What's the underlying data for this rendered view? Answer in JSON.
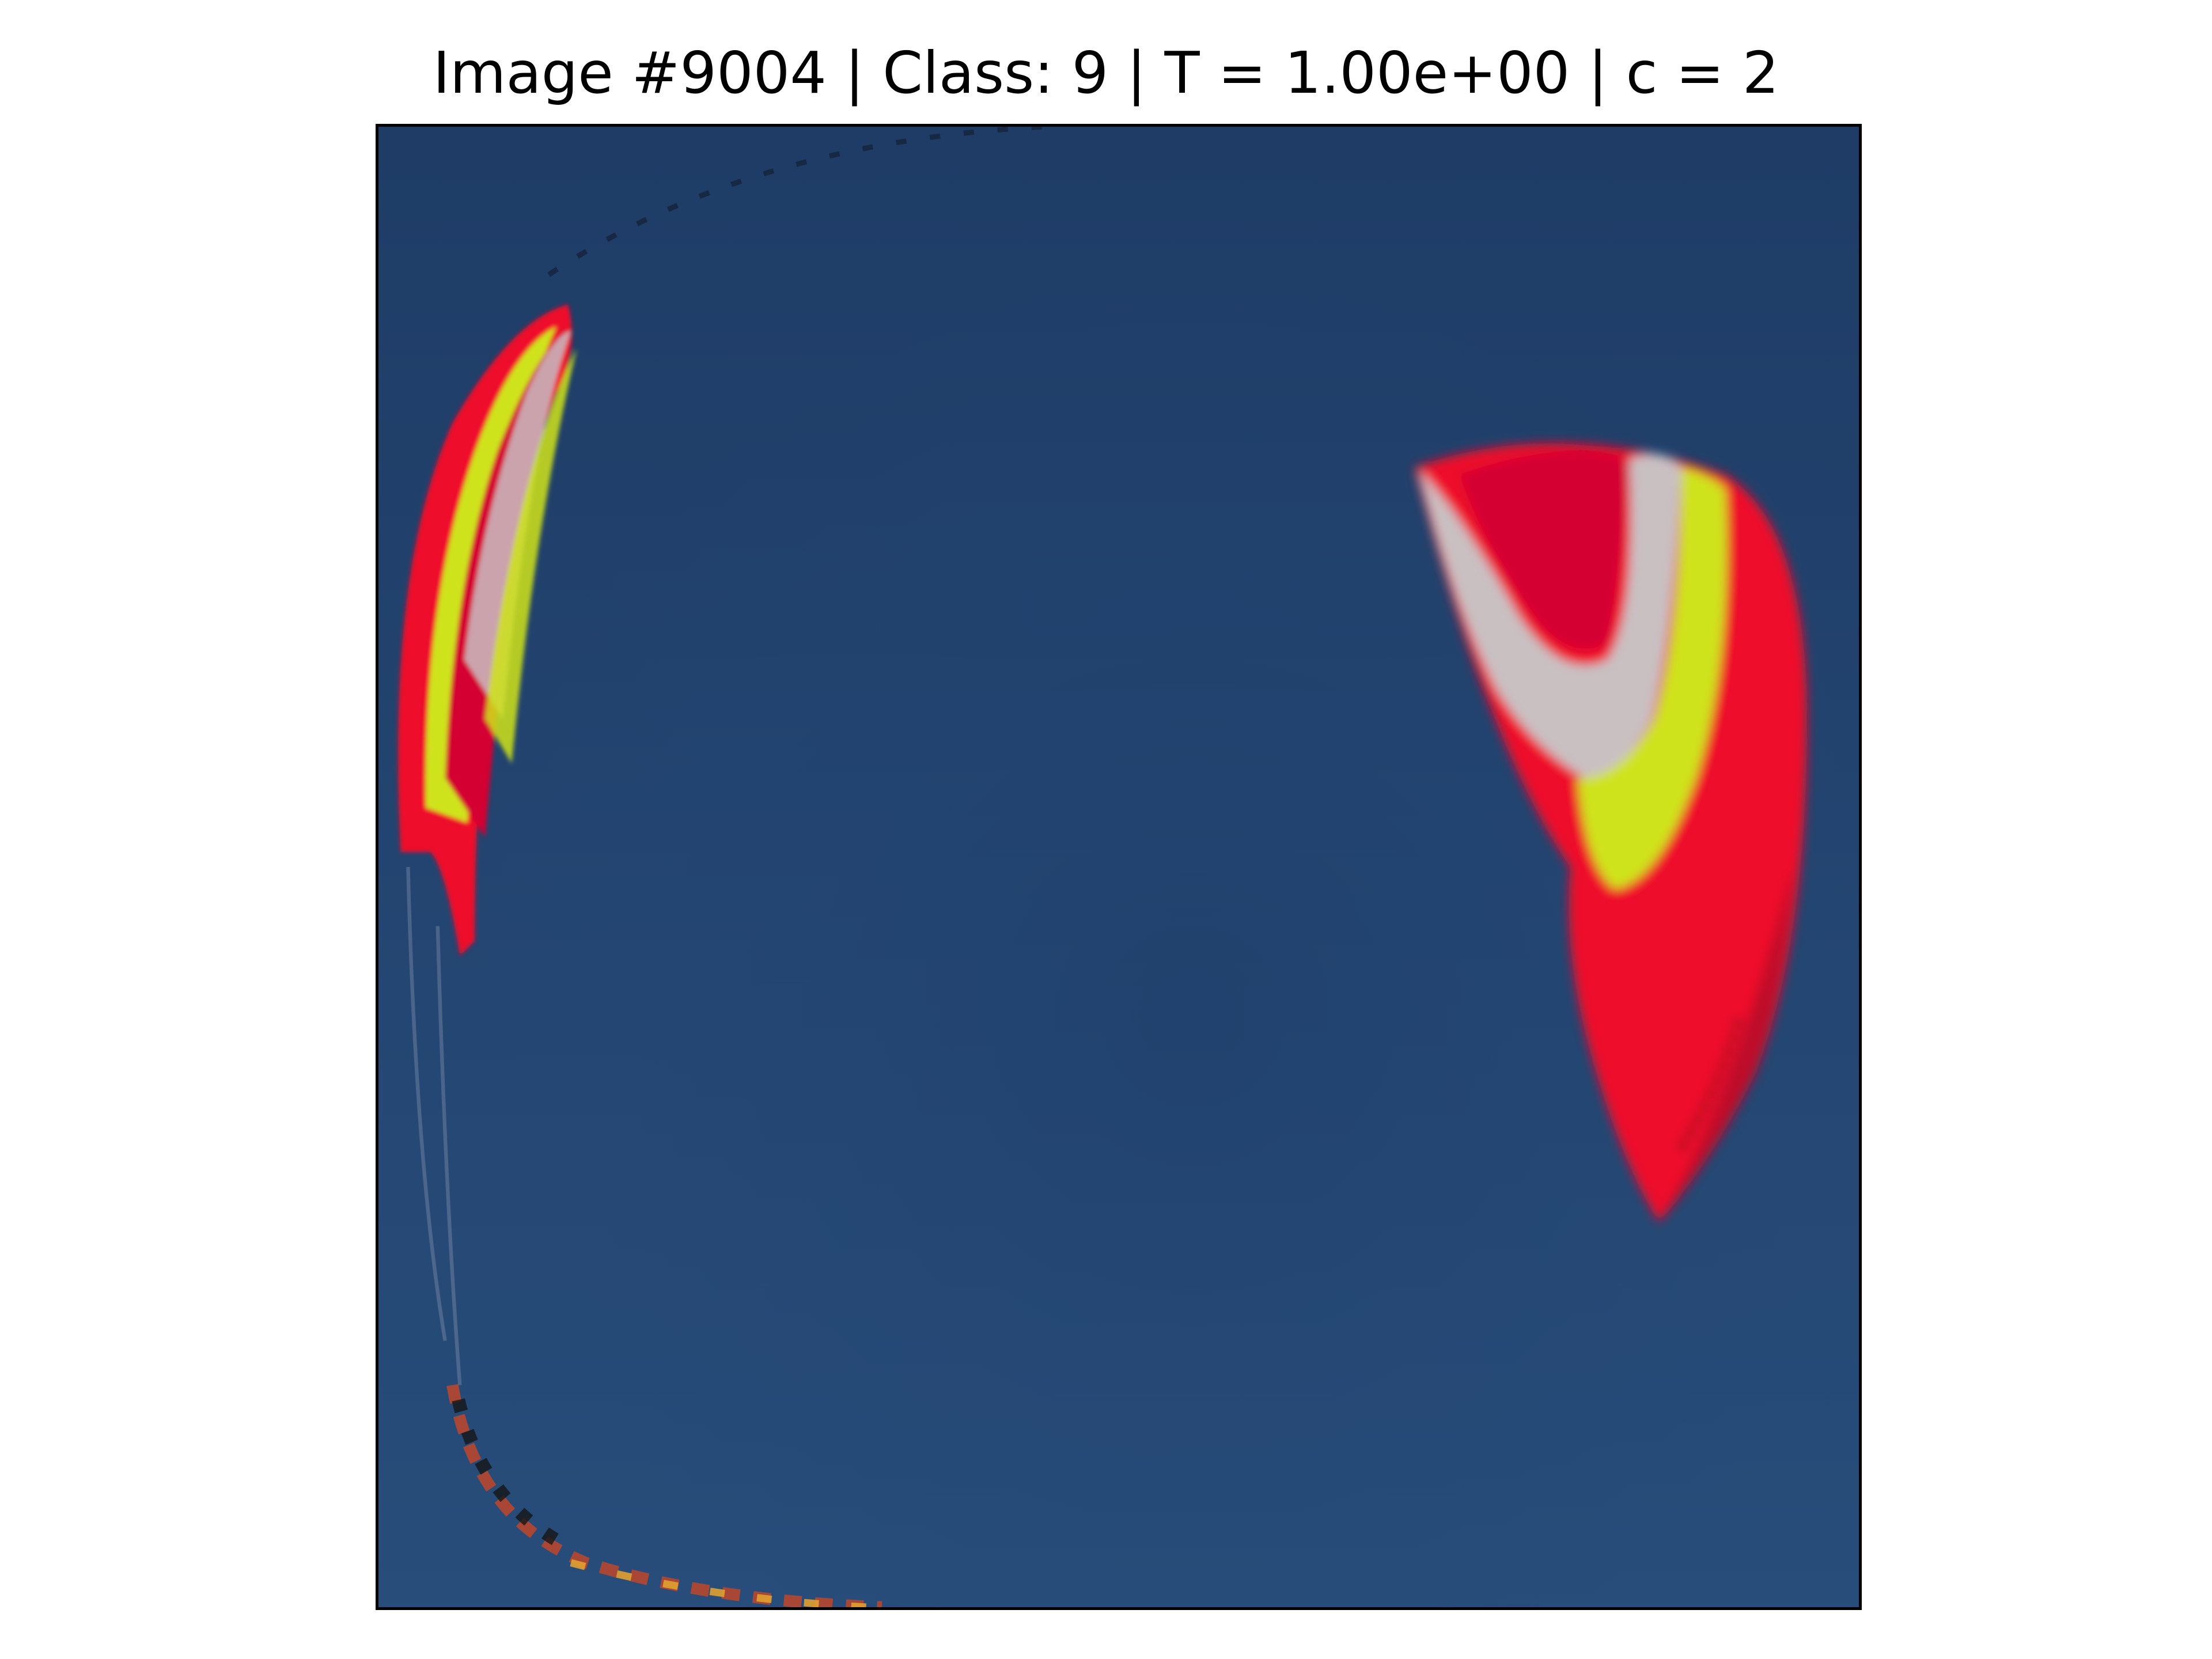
{
  "figure": {
    "title": "Image #9004 | Class: 9 | T = 1.00e+00 | c = 2"
  },
  "image": {
    "subject": "paraglider-canopies",
    "colors": {
      "sky_top": "#1e3c66",
      "sky_bottom": "#284d7a",
      "canopy_red": "#ee0f2c",
      "canopy_crimson": "#d40530",
      "canopy_yellow": "#cfe31a",
      "canopy_white": "#c9c0c2",
      "frame": "#000000"
    }
  }
}
